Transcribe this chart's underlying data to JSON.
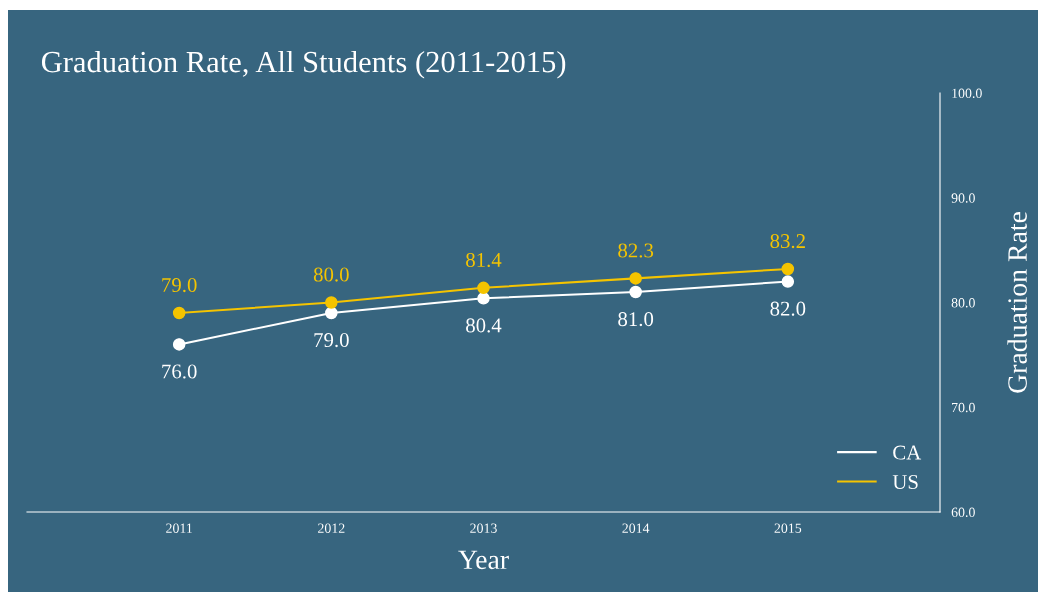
{
  "chart_data": {
    "type": "line",
    "title": "Graduation Rate, All Students (2011-2015)",
    "xlabel": "Year",
    "ylabel": "Graduation Rate",
    "x": [
      2011,
      2012,
      2013,
      2014,
      2015
    ],
    "series": [
      {
        "name": "CA",
        "color": "#ffffff",
        "values": [
          76.0,
          79.0,
          80.4,
          81.0,
          82.0
        ],
        "value_labels": [
          "76.0",
          "79.0",
          "80.4",
          "81.0",
          "82.0"
        ]
      },
      {
        "name": "US",
        "color": "#f5c400",
        "values": [
          79.0,
          80.0,
          81.4,
          82.3,
          83.2
        ],
        "value_labels": [
          "79.0",
          "80.0",
          "81.4",
          "82.3",
          "83.2"
        ]
      }
    ],
    "xlim": [
      2010,
      2016
    ],
    "xticks": [
      2011,
      2012,
      2013,
      2014,
      2015
    ],
    "ylim": [
      60,
      100
    ],
    "yticks": [
      {
        "value": 60,
        "label": "60.0"
      },
      {
        "value": 70,
        "label": "70.0"
      },
      {
        "value": 80,
        "label": "80.0"
      },
      {
        "value": 90,
        "label": "90.0"
      },
      {
        "value": 100,
        "label": "100.0"
      }
    ],
    "grid": false,
    "legend": "bottom right",
    "marker": "circle",
    "line_style": "solid"
  }
}
